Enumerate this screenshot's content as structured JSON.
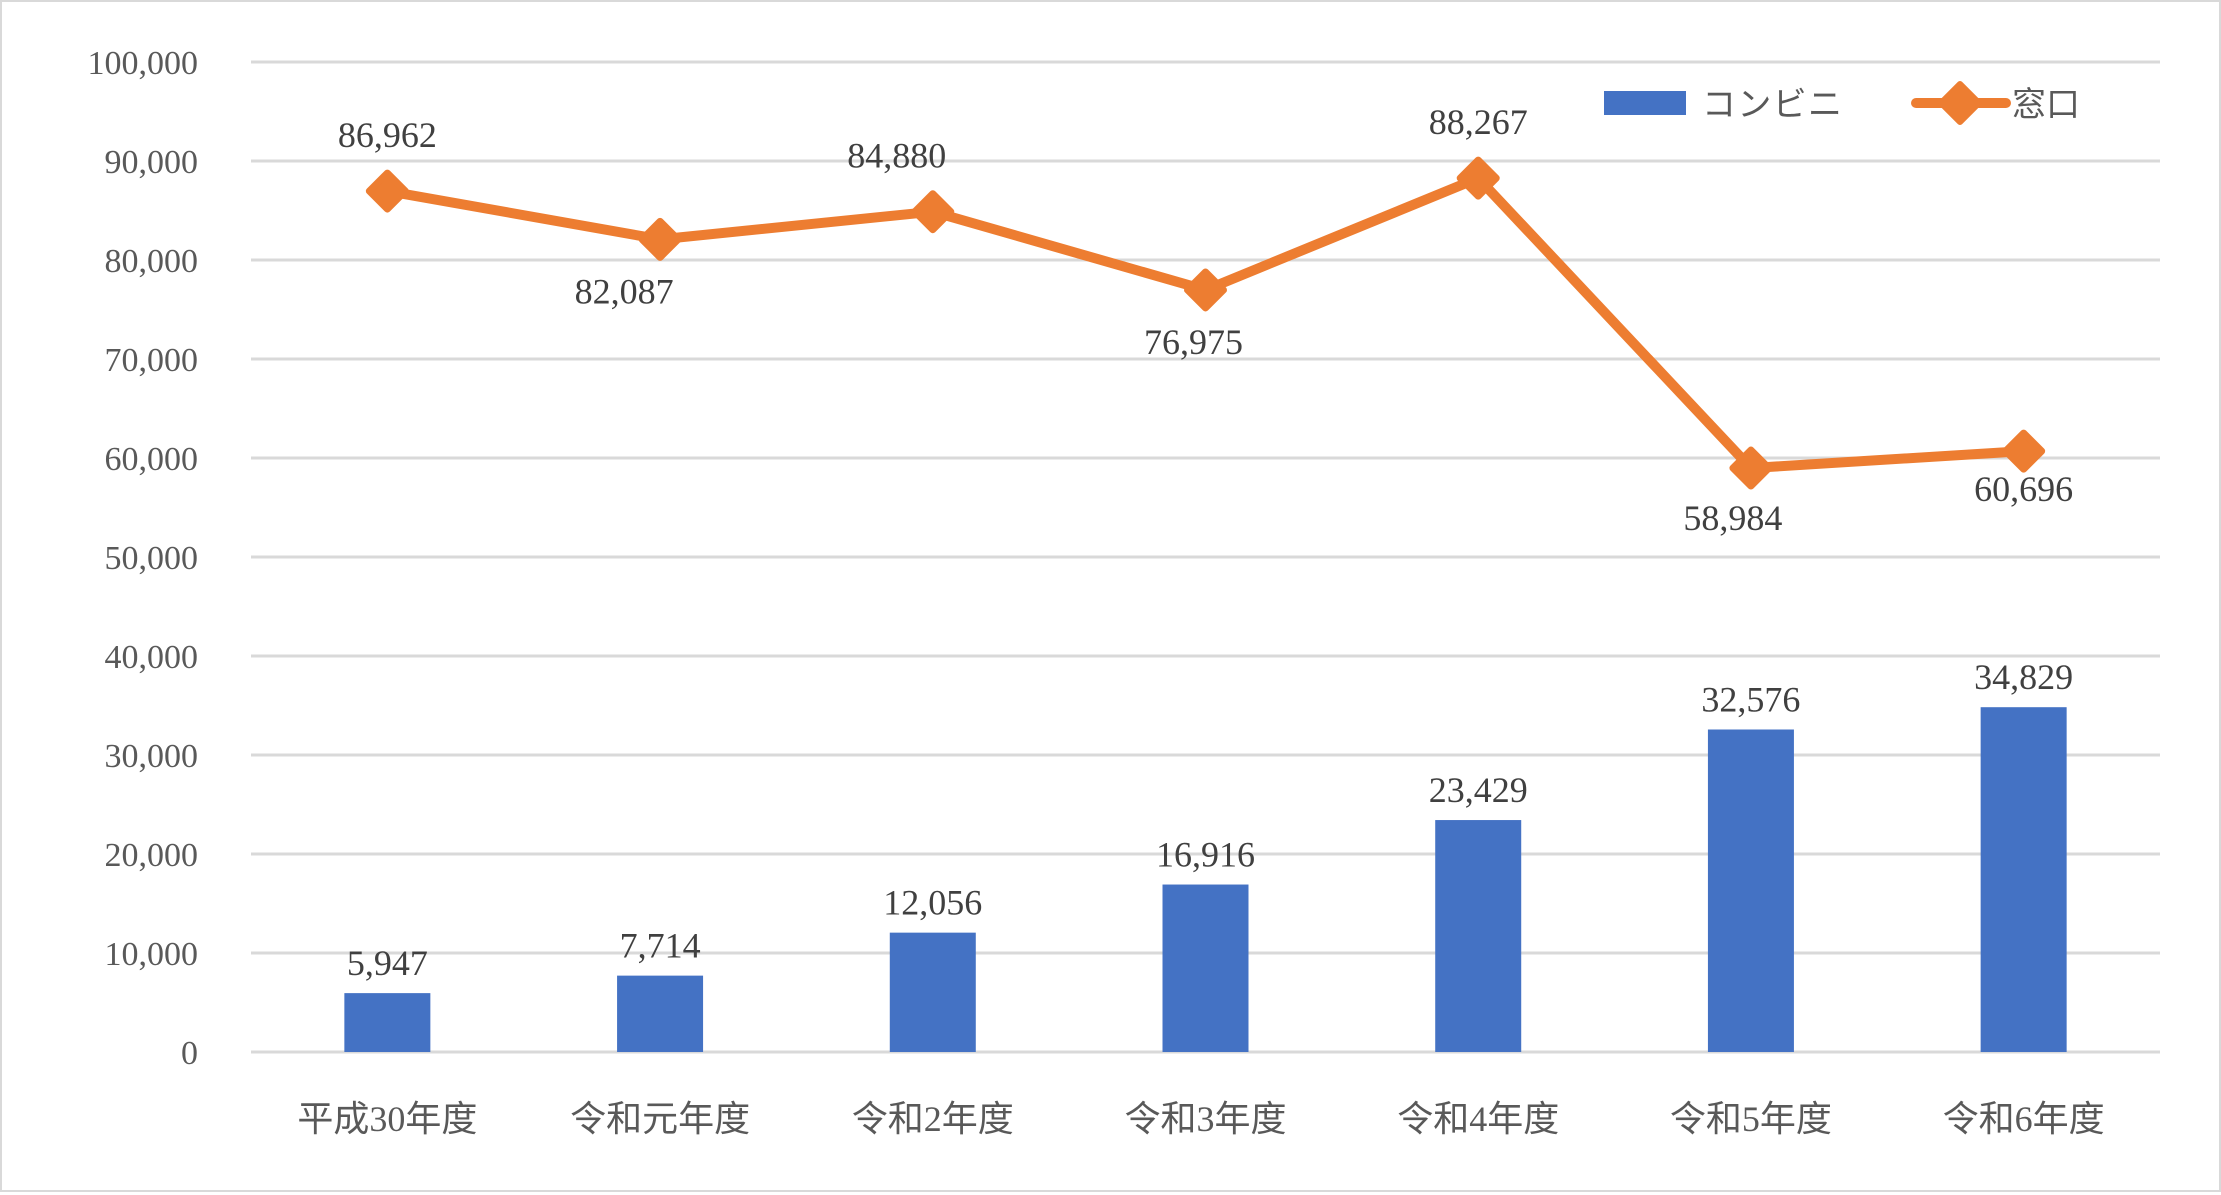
{
  "chart_data": {
    "type": "bar+line",
    "title": "",
    "xlabel": "",
    "ylabel": "",
    "ylim": [
      0,
      100000
    ],
    "yticks": [
      0,
      10000,
      20000,
      30000,
      40000,
      50000,
      60000,
      70000,
      80000,
      90000,
      100000
    ],
    "ytick_labels": [
      "0",
      "10,000",
      "20,000",
      "30,000",
      "40,000",
      "50,000",
      "60,000",
      "70,000",
      "80,000",
      "90,000",
      "100,000"
    ],
    "grid": true,
    "legend_position": "top-right inside",
    "categories": [
      "平成30年度",
      "令和元年度",
      "令和2年度",
      "令和3年度",
      "令和4年度",
      "令和5年度",
      "令和6年度"
    ],
    "series": [
      {
        "name": "コンビニ",
        "type": "bar",
        "color": "#4472C4",
        "values": [
          5947,
          7714,
          12056,
          16916,
          23429,
          32576,
          34829
        ],
        "labels": [
          "5,947",
          "7,714",
          "12,056",
          "16,916",
          "23,429",
          "32,576",
          "34,829"
        ]
      },
      {
        "name": "窓口",
        "type": "line",
        "marker": "diamond",
        "color": "#ED7D31",
        "values": [
          86962,
          82087,
          84880,
          76975,
          88267,
          58984,
          60696
        ],
        "labels": [
          "86,962",
          "82,087",
          "84,880",
          "76,975",
          "88,267",
          "58,984",
          "60,696"
        ],
        "label_positions": [
          "above",
          "below",
          "above",
          "below",
          "above",
          "below",
          "below"
        ]
      }
    ]
  },
  "legend": {
    "items": [
      {
        "label": "コンビニ",
        "icon": "blue-bar-swatch"
      },
      {
        "label": "窓口",
        "icon": "orange-line-diamond-marker"
      }
    ]
  },
  "colors": {
    "bar": "#4472C4",
    "line": "#ED7D31",
    "grid": "#D9D9D9",
    "axis_text": "#595959",
    "label_text": "#404040"
  }
}
